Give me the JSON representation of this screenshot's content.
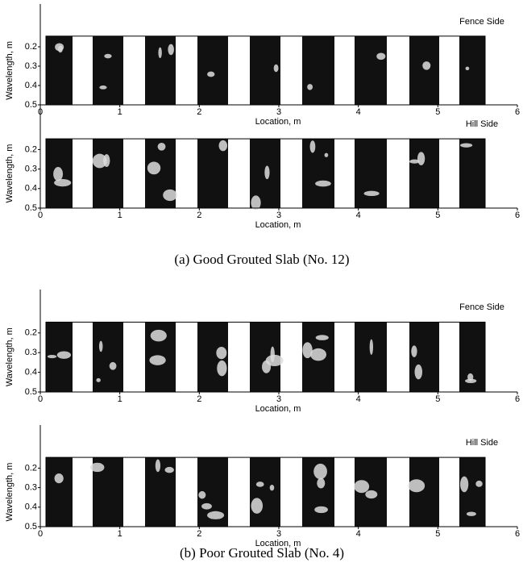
{
  "chart_data": [
    {
      "type": "image",
      "subtitle": "Fence Side",
      "xlabel": "Location, m",
      "ylabel": "Wavelength, m",
      "xlim": [
        0,
        6
      ],
      "xticks": [
        0,
        1,
        2,
        3,
        4,
        5,
        6
      ],
      "ylim": [
        0.5,
        0.0
      ],
      "yticks": [
        0.2,
        0.3,
        0.4,
        0.5
      ]
    },
    {
      "type": "image",
      "subtitle": "Hill Side",
      "xlabel": "Location, m",
      "ylabel": "Wavelength, m",
      "xlim": [
        0,
        6
      ],
      "xticks": [
        0,
        1,
        2,
        3,
        4,
        5,
        6
      ],
      "ylim": [
        0.5,
        0.0
      ],
      "yticks": [
        0.2,
        0.3,
        0.4,
        0.5
      ]
    },
    {
      "type": "image",
      "subtitle": "Fence Side",
      "xlabel": "Location, m",
      "ylabel": "Wavelength, m",
      "xlim": [
        0,
        6
      ],
      "xticks": [
        0,
        1,
        2,
        3,
        4,
        5,
        6
      ],
      "ylim": [
        0.5,
        0.0
      ],
      "yticks": [
        0.2,
        0.3,
        0.4,
        0.5
      ]
    },
    {
      "type": "image",
      "subtitle": "Hill Side",
      "xlabel": "Location, m",
      "ylabel": "Wavelength, m",
      "xlim": [
        0,
        6
      ],
      "xticks": [
        0,
        1,
        2,
        3,
        4,
        5,
        6
      ],
      "ylim": [
        0.5,
        0.0
      ],
      "yticks": [
        0.2,
        0.3,
        0.4,
        0.5
      ]
    }
  ],
  "captions": [
    "(a) Good Grouted Slab (No. 12)",
    "(b) Poor Grouted Slab (No. 4)"
  ]
}
